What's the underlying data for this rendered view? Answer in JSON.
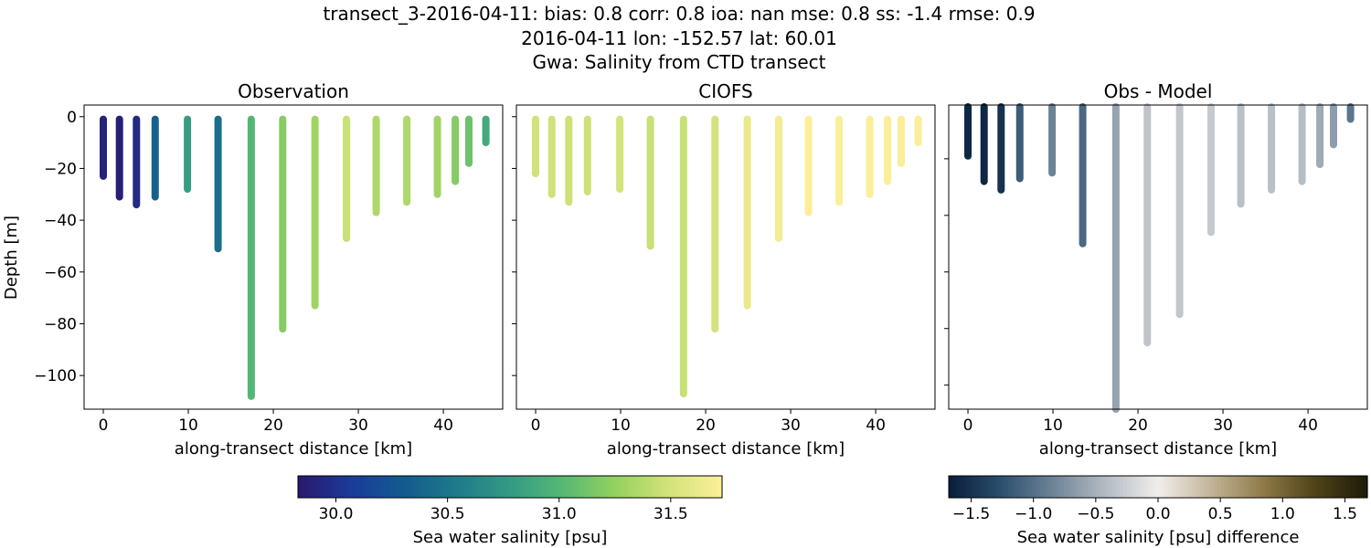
{
  "title_lines": [
    "transect_3-2016-04-11: bias: 0.8  corr: 0.8  ioa: nan  mse: 0.8  ss: -1.4  rmse: 0.9",
    "2016-04-11 lon: -152.57 lat: 60.01",
    "Gwa: Salinity from CTD transect"
  ],
  "chart_data": [
    {
      "type": "scatter",
      "title": "Observation",
      "xlabel": "along-transect distance [km]",
      "ylabel": "Depth [m]",
      "xlim": [
        -2.26,
        46.98
      ],
      "ylim": [
        -113,
        4.5
      ],
      "xticks": [
        0,
        10,
        20,
        30,
        40
      ],
      "yticks": [
        0,
        -20,
        -40,
        -60,
        -80,
        -100
      ],
      "colormap": "haline",
      "stations": [
        {
          "x": 0,
          "max_depth": 23,
          "value": 29.9
        },
        {
          "x": 1.9,
          "max_depth": 31,
          "value": 29.88
        },
        {
          "x": 3.9,
          "max_depth": 34,
          "value": 29.95
        },
        {
          "x": 6.1,
          "max_depth": 31,
          "value": 30.35
        },
        {
          "x": 9.9,
          "max_depth": 28,
          "value": 30.8
        },
        {
          "x": 13.5,
          "max_depth": 51,
          "value": 30.45
        },
        {
          "x": 17.4,
          "max_depth": 108,
          "value": 31.0
        },
        {
          "x": 21.1,
          "max_depth": 82,
          "value": 31.2
        },
        {
          "x": 24.9,
          "max_depth": 73,
          "value": 31.3
        },
        {
          "x": 28.6,
          "max_depth": 47,
          "value": 31.45
        },
        {
          "x": 32.1,
          "max_depth": 37,
          "value": 31.35
        },
        {
          "x": 35.7,
          "max_depth": 33,
          "value": 31.35
        },
        {
          "x": 39.3,
          "max_depth": 30,
          "value": 31.3
        },
        {
          "x": 41.4,
          "max_depth": 25,
          "value": 31.2
        },
        {
          "x": 43.0,
          "max_depth": 18,
          "value": 31.1
        },
        {
          "x": 45.0,
          "max_depth": 10,
          "value": 30.9
        }
      ]
    },
    {
      "type": "scatter",
      "title": "CIOFS",
      "xlabel": "along-transect distance [km]",
      "xlim": [
        -2.26,
        46.98
      ],
      "ylim": [
        -113,
        4.5
      ],
      "xticks": [
        0,
        10,
        20,
        30,
        40
      ],
      "colormap": "haline",
      "stations": [
        {
          "x": 0,
          "max_depth": 22,
          "value": 31.48
        },
        {
          "x": 1.9,
          "max_depth": 30,
          "value": 31.48
        },
        {
          "x": 3.9,
          "max_depth": 33,
          "value": 31.47
        },
        {
          "x": 6.1,
          "max_depth": 29,
          "value": 31.47
        },
        {
          "x": 9.9,
          "max_depth": 28,
          "value": 31.5
        },
        {
          "x": 13.5,
          "max_depth": 50,
          "value": 31.45
        },
        {
          "x": 17.4,
          "max_depth": 107,
          "value": 31.45
        },
        {
          "x": 21.1,
          "max_depth": 82,
          "value": 31.5
        },
        {
          "x": 24.9,
          "max_depth": 73,
          "value": 31.62
        },
        {
          "x": 28.6,
          "max_depth": 47,
          "value": 31.68
        },
        {
          "x": 32.1,
          "max_depth": 37,
          "value": 31.72
        },
        {
          "x": 35.7,
          "max_depth": 33,
          "value": 31.72
        },
        {
          "x": 39.3,
          "max_depth": 30,
          "value": 31.72
        },
        {
          "x": 41.4,
          "max_depth": 25,
          "value": 31.72
        },
        {
          "x": 43.0,
          "max_depth": 18,
          "value": 31.72
        },
        {
          "x": 45.0,
          "max_depth": 10,
          "value": 31.72
        }
      ]
    },
    {
      "type": "scatter",
      "title": "Obs - Model",
      "xlabel": "along-transect distance [km]",
      "xlim": [
        -2.26,
        46.98
      ],
      "ylim": [
        -108.5,
        -1
      ],
      "xticks": [
        0,
        10,
        20,
        30,
        40
      ],
      "colormap": "diff",
      "stations": [
        {
          "x": 0,
          "max_depth": 19,
          "value": -1.6
        },
        {
          "x": 1.9,
          "max_depth": 28,
          "value": -1.6
        },
        {
          "x": 3.9,
          "max_depth": 31,
          "value": -1.5
        },
        {
          "x": 6.1,
          "max_depth": 27,
          "value": -1.15
        },
        {
          "x": 9.9,
          "max_depth": 25,
          "value": -0.85
        },
        {
          "x": 13.5,
          "max_depth": 50,
          "value": -1.05
        },
        {
          "x": 17.4,
          "max_depth": 112,
          "value": -0.6
        },
        {
          "x": 21.1,
          "max_depth": 85,
          "value": -0.35
        },
        {
          "x": 24.9,
          "max_depth": 75,
          "value": -0.32
        },
        {
          "x": 28.6,
          "max_depth": 46,
          "value": -0.3
        },
        {
          "x": 32.1,
          "max_depth": 36,
          "value": -0.38
        },
        {
          "x": 35.7,
          "max_depth": 31,
          "value": -0.38
        },
        {
          "x": 39.3,
          "max_depth": 28,
          "value": -0.4
        },
        {
          "x": 41.4,
          "max_depth": 22,
          "value": -0.55
        },
        {
          "x": 43.0,
          "max_depth": 15,
          "value": -0.65
        },
        {
          "x": 45.0,
          "max_depth": 6,
          "value": -0.95
        }
      ]
    }
  ],
  "colorbars": [
    {
      "label": "Sea water salinity [psu]",
      "range": [
        29.83,
        31.73
      ],
      "ticks": [
        "30.0",
        "30.5",
        "31.0",
        "31.5"
      ],
      "colormap": "haline"
    },
    {
      "label": "Sea water salinity [psu] difference",
      "range": [
        -1.68,
        1.68
      ],
      "ticks": [
        "−1.5",
        "−1.0",
        "−0.5",
        "0.0",
        "0.5",
        "1.0",
        "1.5"
      ],
      "colormap": "diff"
    }
  ],
  "colormaps": {
    "haline": [
      "#2a186c",
      "#1a3b9b",
      "#135b8e",
      "#1f7a8a",
      "#349a83",
      "#56b874",
      "#95d15f",
      "#d3e37a",
      "#fdef9a"
    ],
    "diff": [
      "#081d3a",
      "#2b4f6e",
      "#6e8497",
      "#b4bbc3",
      "#f0eeec",
      "#c4b59a",
      "#8f7a48",
      "#4f4317",
      "#1c1a0a"
    ]
  }
}
